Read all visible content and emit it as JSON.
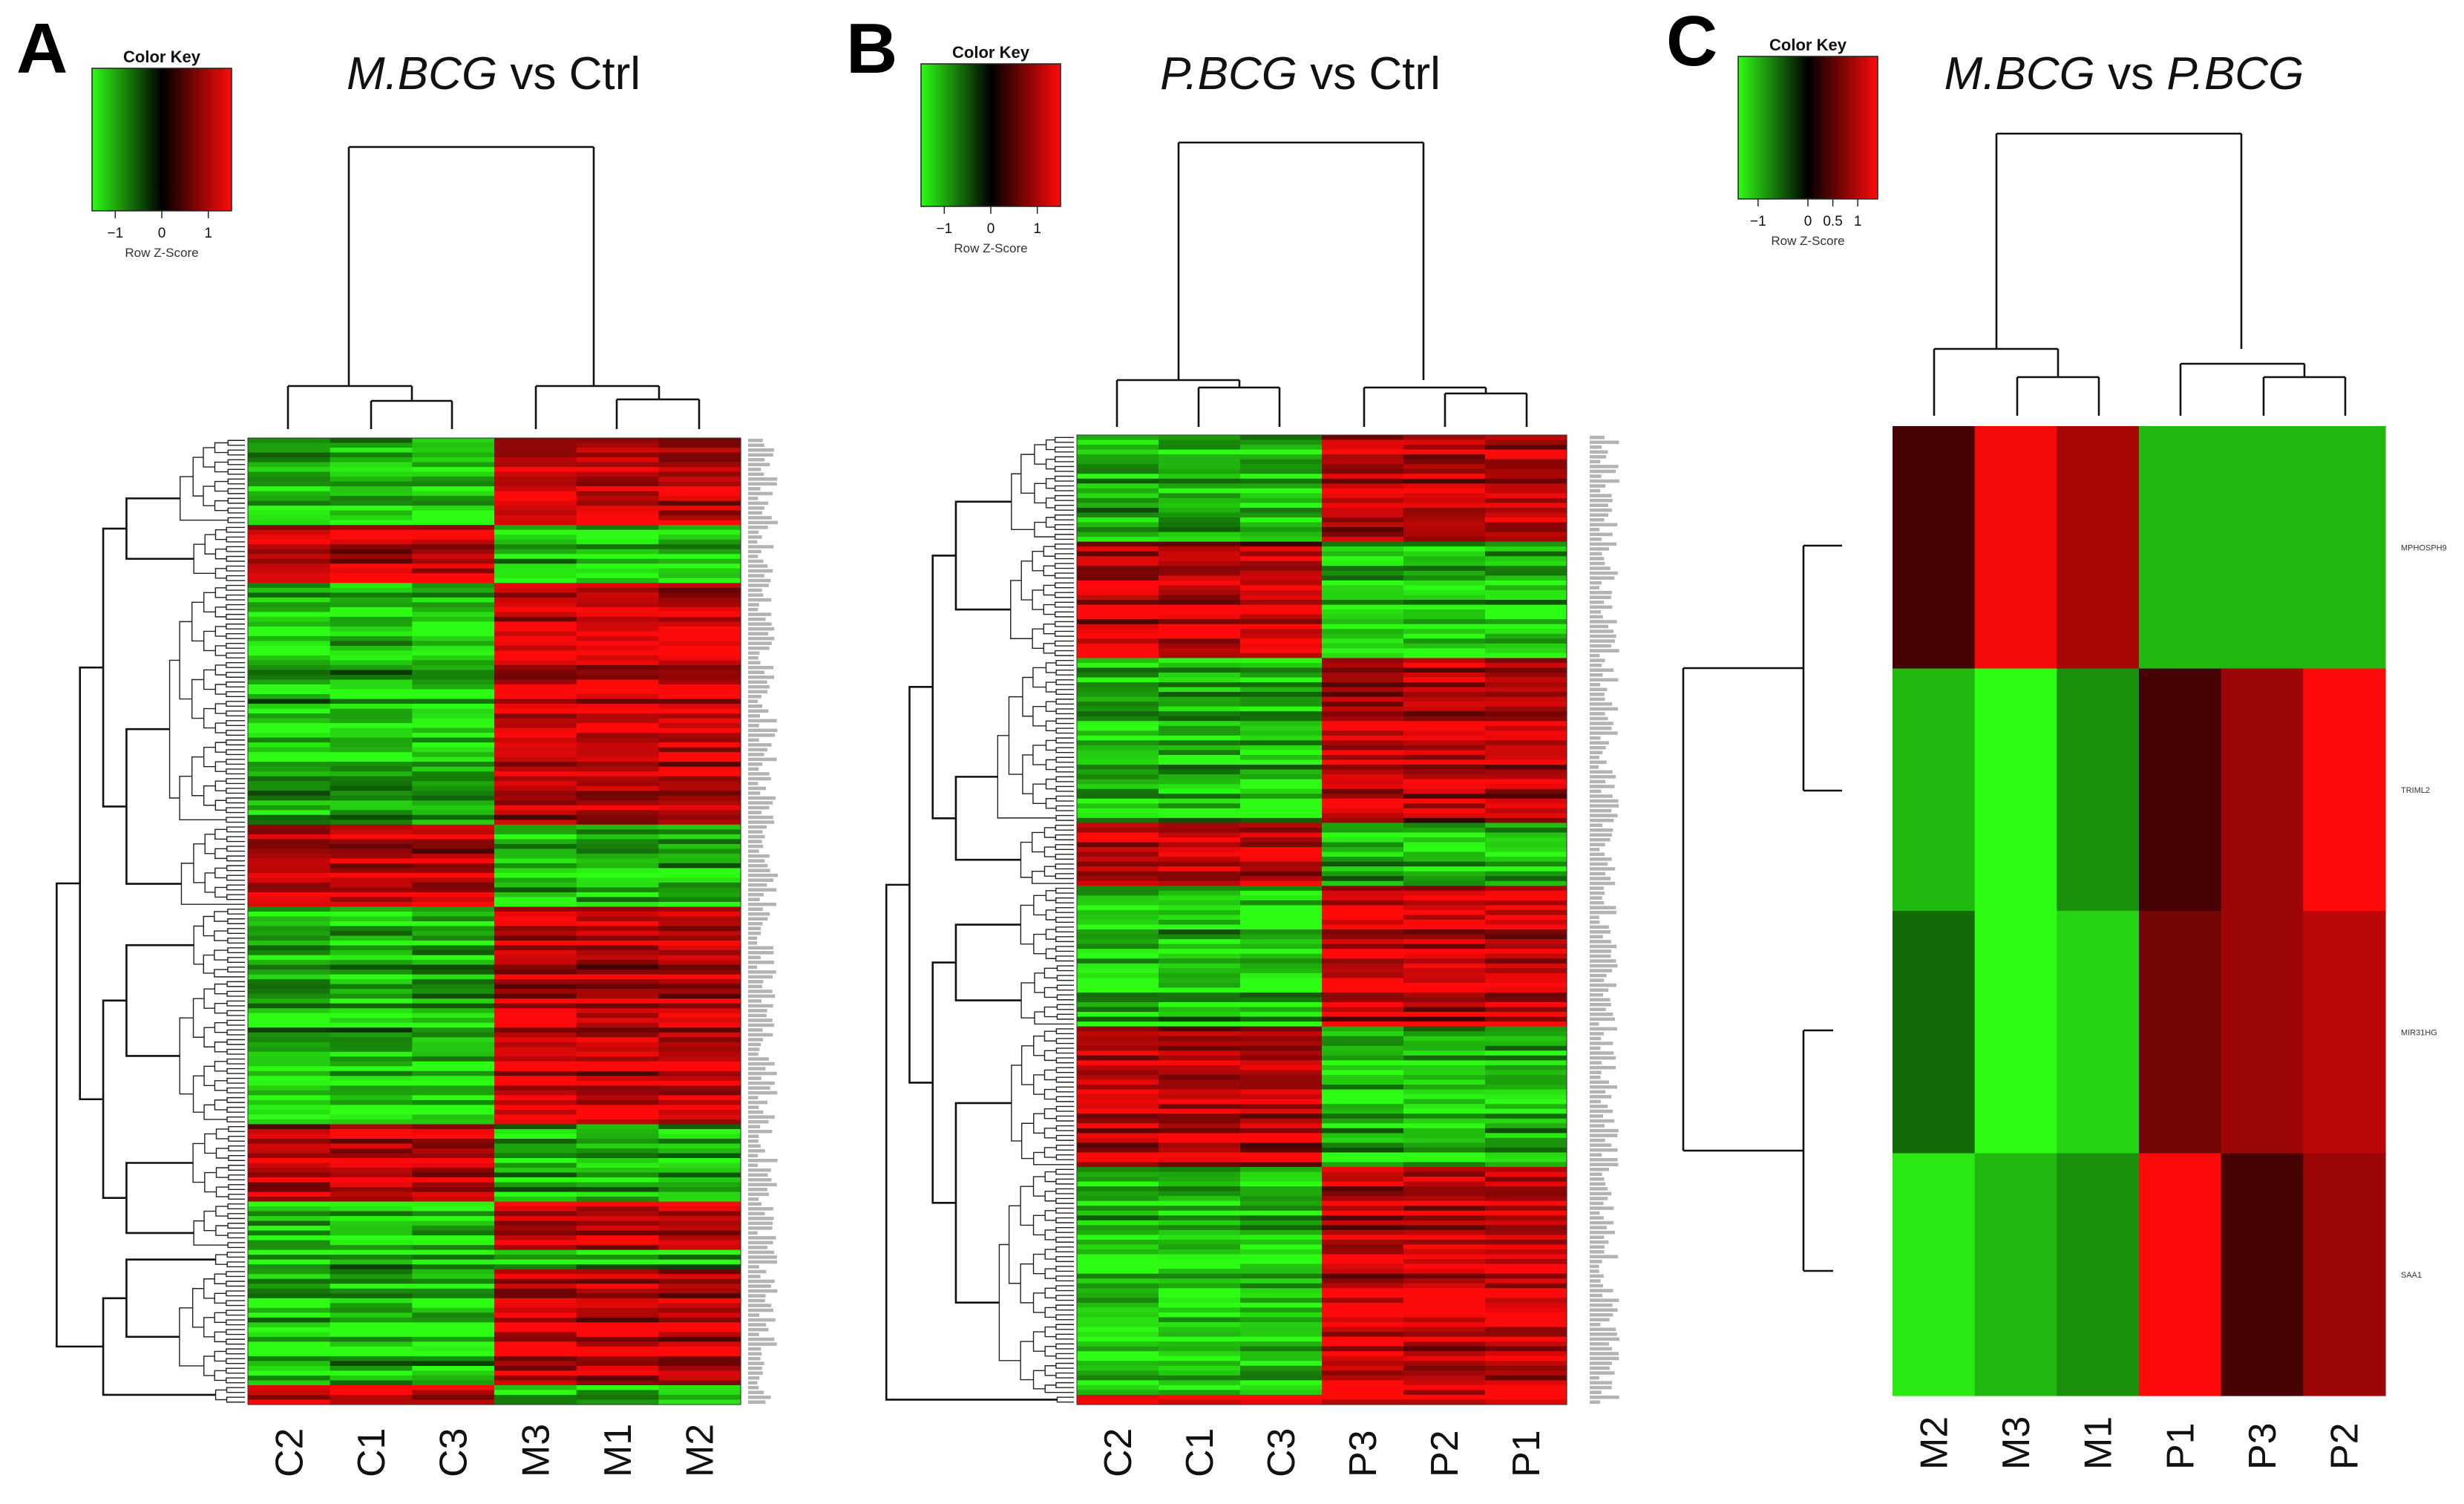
{
  "figure": {
    "type": "heatmap_panels",
    "panel_count": 3
  },
  "color_scale": {
    "low": "#2dfc14",
    "mid": "#000000",
    "high": "#ff0a0a",
    "label": "Row Z-Score",
    "title": "Color Key"
  },
  "chart_data": [
    {
      "type": "heatmap",
      "panel": "A",
      "title_parts": [
        {
          "text": "M.BCG",
          "italic": true
        },
        {
          "text": " vs Ctrl",
          "italic": false
        }
      ],
      "columns": [
        "C2",
        "C1",
        "C3",
        "M3",
        "M1",
        "M2"
      ],
      "color_key": {
        "title": "Color Key",
        "label": "Row Z-Score",
        "ticks": [
          "−1",
          "0",
          "1"
        ],
        "range": [
          -1.5,
          1.5
        ]
      },
      "row_count": 200,
      "row_labels_legible": false,
      "blocks": [
        {
          "rows": 18,
          "pattern": [
            -1,
            -1,
            -1,
            1,
            1,
            1
          ]
        },
        {
          "rows": 12,
          "pattern": [
            1,
            1,
            1,
            -1,
            -1,
            -1
          ]
        },
        {
          "rows": 50,
          "pattern": [
            -1,
            -1,
            -1,
            1,
            1,
            1
          ]
        },
        {
          "rows": 17,
          "pattern": [
            1,
            1,
            1,
            -1,
            -1,
            -1
          ]
        },
        {
          "rows": 15,
          "pattern": [
            -1,
            -1,
            -1,
            1,
            1,
            1
          ]
        },
        {
          "rows": 30,
          "pattern": [
            -1,
            -1,
            -1,
            1,
            1,
            1
          ]
        },
        {
          "rows": 16,
          "pattern": [
            1,
            1,
            1,
            -1,
            -1,
            -1
          ]
        },
        {
          "rows": 10,
          "pattern": [
            -1,
            -1,
            -1,
            1,
            1,
            1
          ]
        },
        {
          "rows": 4,
          "pattern": [
            -1,
            -1,
            -1,
            -1,
            -1,
            -1
          ]
        },
        {
          "rows": 24,
          "pattern": [
            -1,
            -1,
            -1,
            1,
            1,
            1
          ]
        },
        {
          "rows": 4,
          "pattern": [
            1,
            1,
            1,
            -1,
            -1,
            -1
          ]
        }
      ]
    },
    {
      "type": "heatmap",
      "panel": "B",
      "title_parts": [
        {
          "text": "P.BCG",
          "italic": true
        },
        {
          "text": " vs Ctrl",
          "italic": false
        }
      ],
      "columns": [
        "C2",
        "C1",
        "C3",
        "P3",
        "P2",
        "P1"
      ],
      "color_key": {
        "title": "Color Key",
        "label": "Row Z-Score",
        "ticks": [
          "−1",
          "0",
          "1"
        ],
        "range": [
          -1.5,
          1.5
        ]
      },
      "row_count": 200,
      "row_labels_legible": false,
      "blocks": [
        {
          "rows": 22,
          "pattern": [
            -1,
            -1,
            -1,
            1,
            1,
            1
          ]
        },
        {
          "rows": 24,
          "pattern": [
            1,
            1,
            1,
            -1,
            -1,
            -1
          ]
        },
        {
          "rows": 34,
          "pattern": [
            -1,
            -1,
            -1,
            1,
            1,
            1
          ]
        },
        {
          "rows": 13,
          "pattern": [
            1,
            1,
            1,
            -1,
            -1,
            -1
          ]
        },
        {
          "rows": 16,
          "pattern": [
            -1,
            -1,
            -1,
            1,
            1,
            1
          ]
        },
        {
          "rows": 13,
          "pattern": [
            -1,
            -1,
            -1,
            1,
            1,
            1
          ]
        },
        {
          "rows": 29,
          "pattern": [
            1,
            1,
            1,
            -1,
            -1,
            -1
          ]
        },
        {
          "rows": 47,
          "pattern": [
            -1,
            -1,
            -1,
            1,
            1,
            1
          ]
        },
        {
          "rows": 2,
          "pattern": [
            1,
            1,
            1,
            1,
            1,
            1
          ]
        }
      ]
    },
    {
      "type": "heatmap",
      "panel": "C",
      "title_parts": [
        {
          "text": "M.BCG",
          "italic": true
        },
        {
          "text": " vs ",
          "italic": false
        },
        {
          "text": "P.BCG",
          "italic": true
        }
      ],
      "columns": [
        "M2",
        "M3",
        "M1",
        "P1",
        "P3",
        "P2"
      ],
      "rows": [
        "MPHOSPH9",
        "TRIML2",
        "MIR31HG",
        "SAA1"
      ],
      "values": [
        [
          0.35,
          1.25,
          0.85,
          -0.95,
          -0.95,
          -0.95
        ],
        [
          -0.95,
          -1.3,
          -0.75,
          0.35,
          0.8,
          1.3
        ],
        [
          -0.55,
          -1.3,
          -1.1,
          0.6,
          0.8,
          0.95
        ],
        [
          -1.2,
          -0.95,
          -0.75,
          1.3,
          0.35,
          0.8
        ]
      ],
      "color_key": {
        "title": "Color Key",
        "label": "Row Z-Score",
        "ticks": [
          "−1",
          "0",
          "0.5",
          "1"
        ],
        "tick_values": [
          -1,
          0,
          0.5,
          1
        ],
        "range": [
          -1.4,
          1.4
        ]
      }
    }
  ]
}
